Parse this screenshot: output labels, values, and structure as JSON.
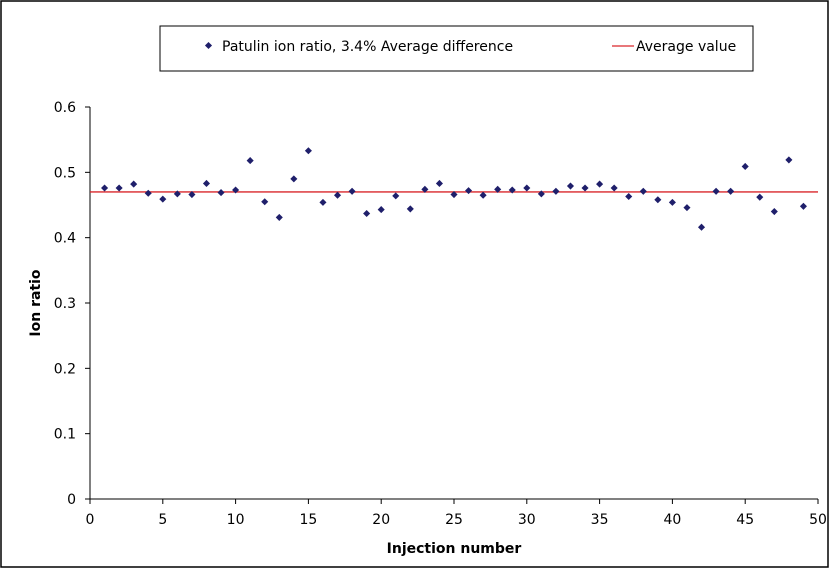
{
  "chart_data": {
    "type": "scatter",
    "xlabel": "Injection number",
    "ylabel": "Ion ratio",
    "xlim": [
      0,
      50
    ],
    "ylim": [
      0,
      0.6
    ],
    "x_ticks": [
      "0",
      "5",
      "10",
      "15",
      "20",
      "25",
      "30",
      "35",
      "40",
      "45",
      "50"
    ],
    "y_ticks": [
      "0",
      "0.1",
      "0.2",
      "0.3",
      "0.4",
      "0.5",
      "0.6"
    ],
    "grid": false,
    "legend_position": "top",
    "series": [
      {
        "name": "Patulin ion ratio, 3.4% Average difference",
        "kind": "scatter",
        "color": "#1f1f6b",
        "x": [
          1,
          2,
          3,
          4,
          5,
          6,
          7,
          8,
          9,
          10,
          11,
          12,
          13,
          14,
          15,
          16,
          17,
          18,
          19,
          20,
          21,
          22,
          23,
          24,
          25,
          26,
          27,
          28,
          29,
          30,
          31,
          32,
          33,
          34,
          35,
          36,
          37,
          38,
          39,
          40,
          41,
          42,
          43,
          44,
          45,
          46,
          47,
          48,
          49
        ],
        "y": [
          0.476,
          0.476,
          0.482,
          0.468,
          0.459,
          0.467,
          0.466,
          0.483,
          0.469,
          0.473,
          0.518,
          0.455,
          0.431,
          0.49,
          0.533,
          0.454,
          0.465,
          0.471,
          0.437,
          0.443,
          0.464,
          0.444,
          0.474,
          0.483,
          0.466,
          0.472,
          0.465,
          0.474,
          0.473,
          0.476,
          0.467,
          0.471,
          0.479,
          0.476,
          0.482,
          0.476,
          0.463,
          0.471,
          0.458,
          0.454,
          0.446,
          0.416,
          0.471,
          0.471,
          0.509,
          0.462,
          0.44,
          0.519,
          0.448
        ]
      },
      {
        "name": "Average value",
        "kind": "line",
        "color": "#d9262a",
        "y": 0.47
      }
    ]
  }
}
